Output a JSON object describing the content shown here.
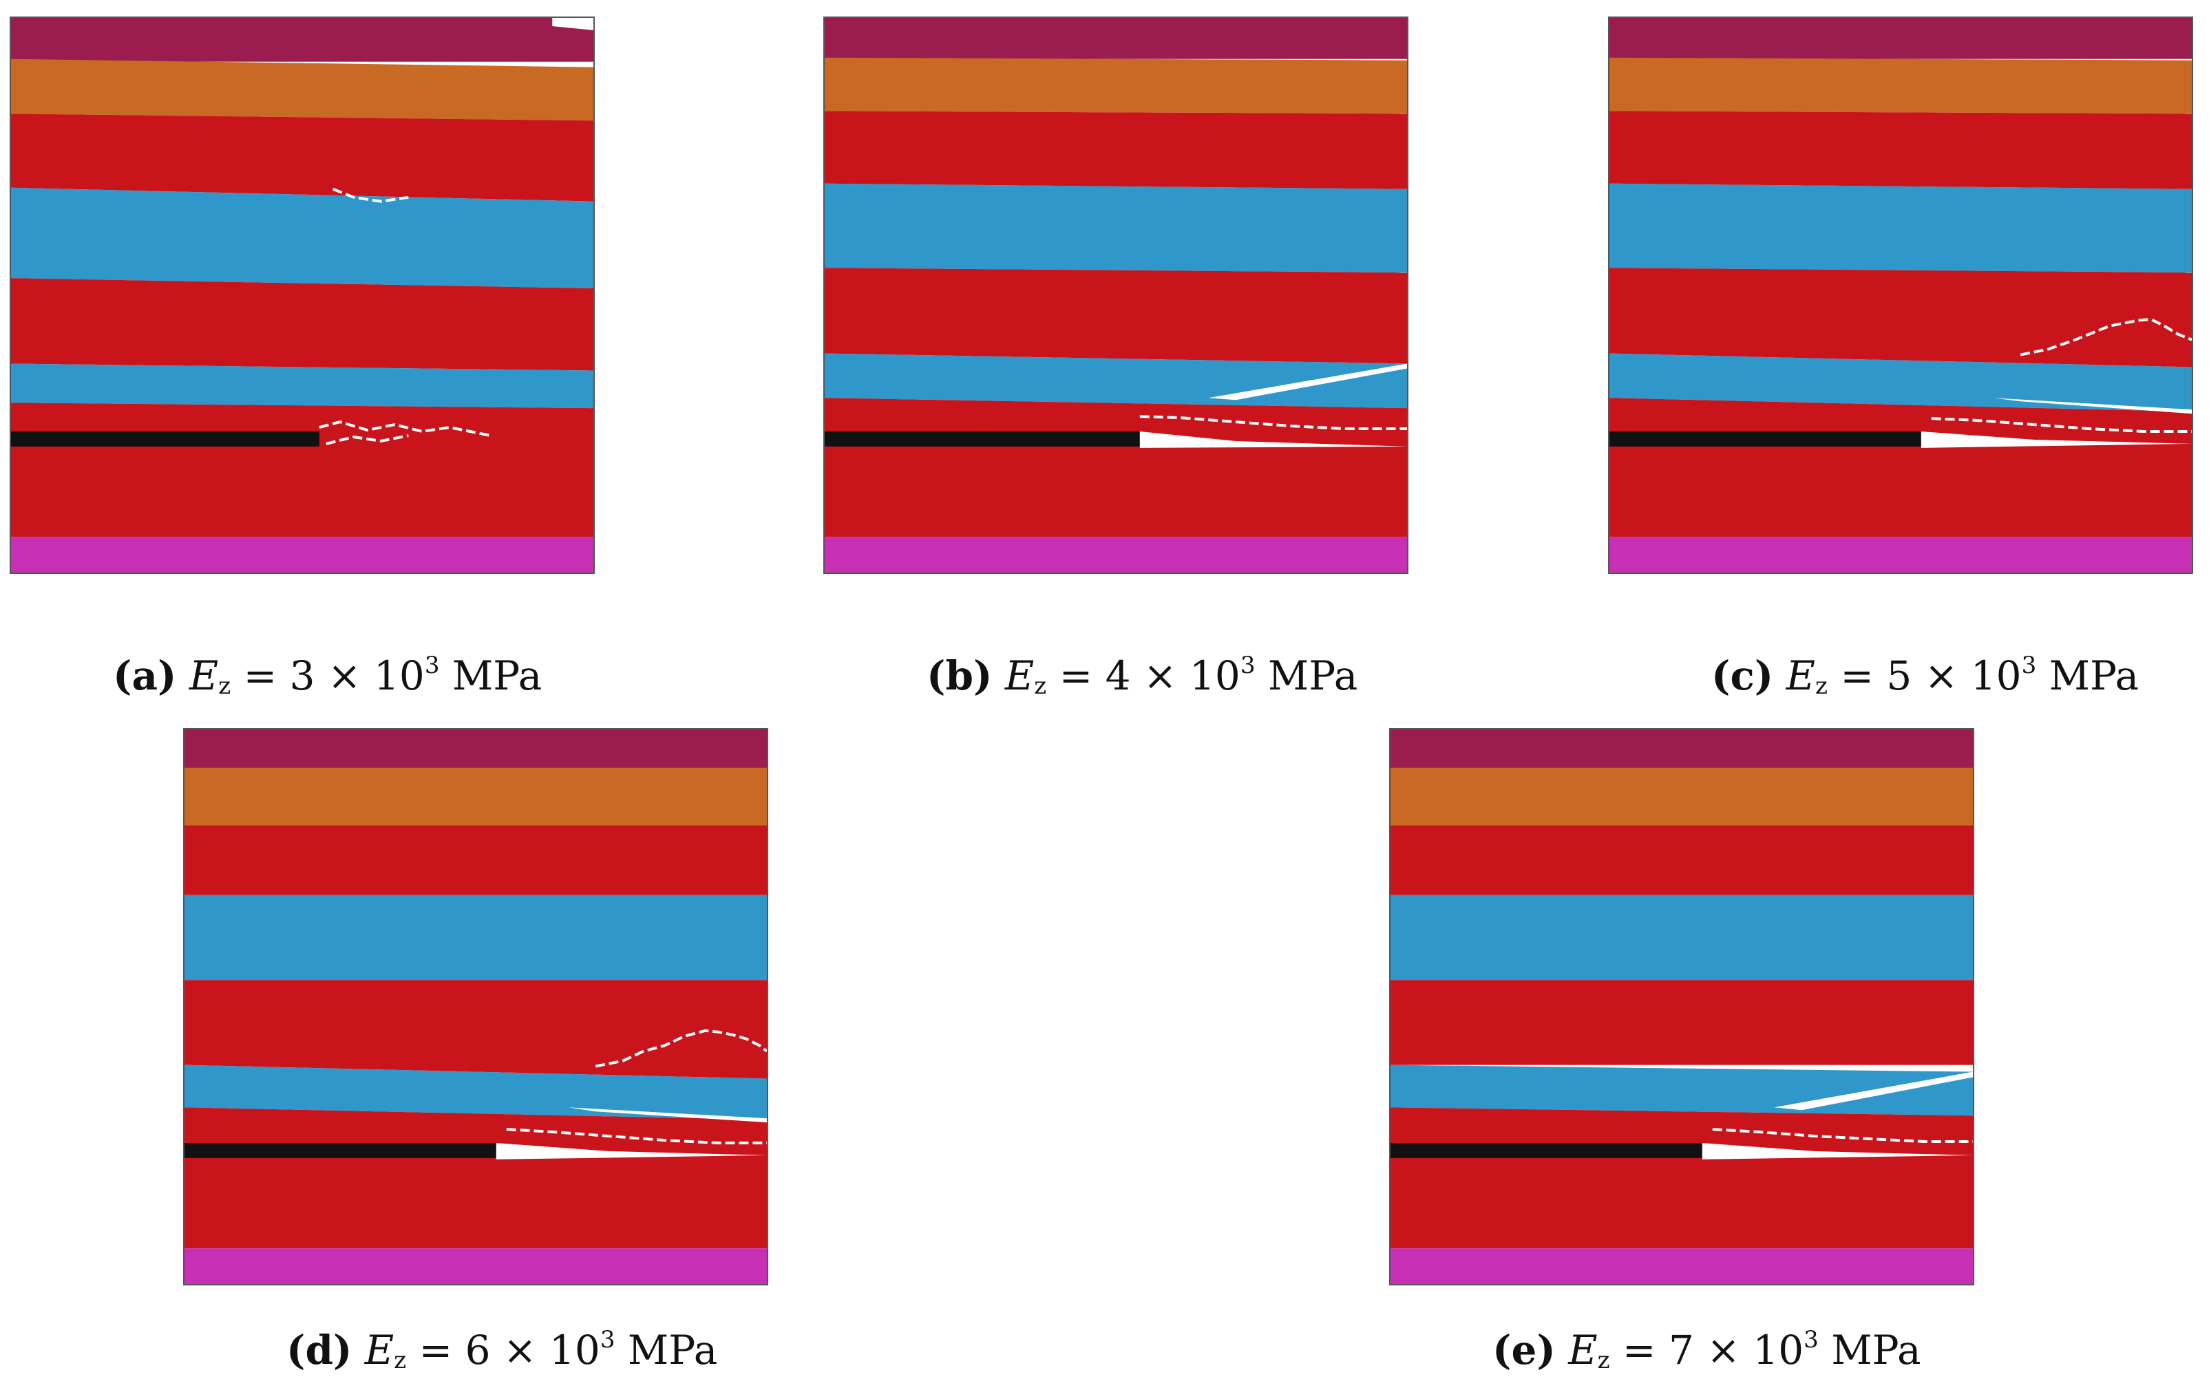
{
  "colors": {
    "top_layer": "#9b1c4e",
    "orange_layer": "#c96a24",
    "red_layer": "#c9141b",
    "blue_layer": "#2f97c9",
    "magenta_layer": "#c72fb5",
    "coal_seam_excavated": "#111111",
    "crack": "#ffffff"
  },
  "panels": [
    {
      "label": "(a)",
      "var": "E",
      "sub": "z",
      "eq": " = 3 × 10",
      "exp": "3",
      "unit": " MPa"
    },
    {
      "label": "(b)",
      "var": "E",
      "sub": "z",
      "eq": " = 4 × 10",
      "exp": "3",
      "unit": " MPa"
    },
    {
      "label": "(c)",
      "var": "E",
      "sub": "z",
      "eq": " = 5 × 10",
      "exp": "3",
      "unit": " MPa"
    },
    {
      "label": "(d)",
      "var": "E",
      "sub": "z",
      "eq": " = 6 × 10",
      "exp": "3",
      "unit": " MPa"
    },
    {
      "label": "(e)",
      "var": "E",
      "sub": "z",
      "eq": " = 7 × 10",
      "exp": "3",
      "unit": " MPa"
    }
  ]
}
